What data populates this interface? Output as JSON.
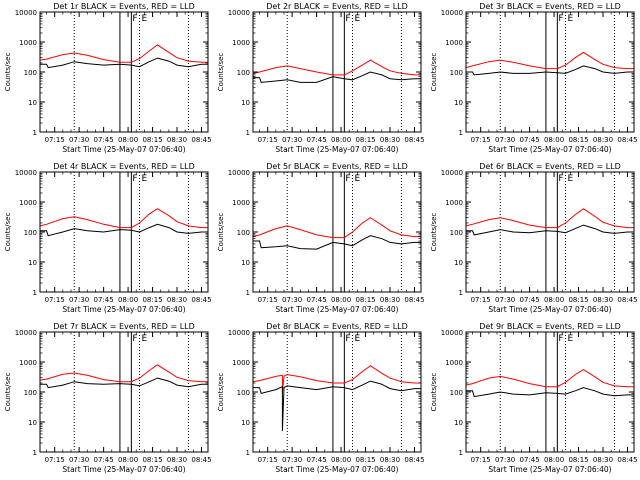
{
  "figure": {
    "time_label": "Start Time (25-May-07 07:06:40)",
    "y_label": "Counts/sec",
    "x_tick_labels": [
      "07:15",
      "07:30",
      "07:45",
      "08:00",
      "08:15",
      "08:30",
      "08:45"
    ],
    "y_tick_labels": [
      "1",
      "10",
      "100",
      "1000",
      "10000"
    ],
    "marker_labels": [
      "F",
      "E"
    ]
  },
  "chart_data": [
    {
      "type": "line",
      "title": "Det 1r BLACK = Events, RED = LLD",
      "xlabel": "Start Time (25-May-07 07:06:40)",
      "ylabel": "Counts/sec",
      "ylim": [
        1,
        10000
      ],
      "y_scale": "log",
      "x_range": [
        "07:06",
        "08:49"
      ],
      "vertical_markers": {
        "dotted": [
          "07:27",
          "08:07",
          "08:37"
        ],
        "solid": [
          "07:55",
          "08:02"
        ]
      },
      "series": [
        {
          "color": "#ff0000",
          "x": [
            "07:06",
            "07:10",
            "07:20",
            "07:27",
            "07:35",
            "07:45",
            "07:55",
            "08:02",
            "08:07",
            "08:13",
            "08:18",
            "08:25",
            "08:30",
            "08:37",
            "08:45",
            "08:49"
          ],
          "values": [
            250,
            270,
            380,
            430,
            360,
            260,
            210,
            210,
            280,
            500,
            800,
            450,
            300,
            230,
            210,
            210
          ]
        },
        {
          "color": "#000000",
          "x": [
            "07:06",
            "07:10",
            "07:11",
            "07:20",
            "07:27",
            "07:35",
            "07:45",
            "07:55",
            "08:02",
            "08:07",
            "08:13",
            "08:18",
            "08:25",
            "08:30",
            "08:37",
            "08:45",
            "08:49"
          ],
          "values": [
            180,
            180,
            140,
            170,
            220,
            190,
            170,
            180,
            170,
            150,
            220,
            290,
            230,
            170,
            150,
            180,
            180
          ]
        }
      ]
    },
    {
      "type": "line",
      "title": "Det 2r BLACK = Events, RED = LLD",
      "xlabel": "Start Time (25-May-07 07:06:40)",
      "ylabel": "Counts/sec",
      "ylim": [
        1,
        10000
      ],
      "y_scale": "log",
      "x_range": [
        "07:06",
        "08:49"
      ],
      "vertical_markers": {
        "dotted": [
          "07:27",
          "08:07",
          "08:37"
        ],
        "solid": [
          "07:55",
          "08:02"
        ]
      },
      "series": [
        {
          "color": "#ff0000",
          "x": [
            "07:06",
            "07:10",
            "07:20",
            "07:27",
            "07:35",
            "07:45",
            "07:55",
            "08:02",
            "08:07",
            "08:13",
            "08:18",
            "08:25",
            "08:30",
            "08:37",
            "08:45",
            "08:49"
          ],
          "values": [
            90,
            100,
            140,
            160,
            130,
            100,
            80,
            80,
            110,
            170,
            250,
            150,
            110,
            90,
            80,
            80
          ]
        },
        {
          "color": "#000000",
          "x": [
            "07:06",
            "07:10",
            "07:11",
            "07:20",
            "07:27",
            "07:35",
            "07:45",
            "07:55",
            "08:02",
            "08:07",
            "08:13",
            "08:18",
            "08:25",
            "08:30",
            "08:37",
            "08:45",
            "08:49"
          ],
          "values": [
            65,
            65,
            45,
            50,
            55,
            45,
            45,
            70,
            60,
            55,
            75,
            100,
            80,
            60,
            55,
            60,
            60
          ]
        }
      ]
    },
    {
      "type": "line",
      "title": "Det 3r BLACK = Events, RED = LLD",
      "xlabel": "Start Time (25-May-07 07:06:40)",
      "ylabel": "Counts/sec",
      "ylim": [
        1,
        10000
      ],
      "y_scale": "log",
      "x_range": [
        "07:06",
        "08:49"
      ],
      "vertical_markers": {
        "dotted": [
          "07:27",
          "08:07",
          "08:37"
        ],
        "solid": [
          "07:55",
          "08:02"
        ]
      },
      "series": [
        {
          "color": "#ff0000",
          "x": [
            "07:06",
            "07:10",
            "07:20",
            "07:27",
            "07:35",
            "07:45",
            "07:55",
            "08:02",
            "08:07",
            "08:13",
            "08:18",
            "08:25",
            "08:30",
            "08:37",
            "08:45",
            "08:49"
          ],
          "values": [
            140,
            160,
            220,
            250,
            210,
            160,
            130,
            130,
            170,
            300,
            450,
            260,
            180,
            140,
            130,
            130
          ]
        },
        {
          "color": "#000000",
          "x": [
            "07:06",
            "07:10",
            "07:11",
            "07:20",
            "07:27",
            "07:35",
            "07:45",
            "07:55",
            "08:02",
            "08:07",
            "08:13",
            "08:18",
            "08:25",
            "08:30",
            "08:37",
            "08:45",
            "08:49"
          ],
          "values": [
            100,
            100,
            80,
            90,
            100,
            90,
            90,
            100,
            95,
            90,
            120,
            160,
            130,
            100,
            90,
            100,
            100
          ]
        }
      ]
    },
    {
      "type": "line",
      "title": "Det 4r BLACK = Events, RED = LLD",
      "xlabel": "Start Time (25-May-07 07:06:40)",
      "ylabel": "Counts/sec",
      "ylim": [
        1,
        10000
      ],
      "y_scale": "log",
      "x_range": [
        "07:06",
        "08:49"
      ],
      "vertical_markers": {
        "dotted": [
          "07:27",
          "08:07",
          "08:37"
        ],
        "solid": [
          "07:55",
          "08:02"
        ]
      },
      "series": [
        {
          "color": "#ff0000",
          "x": [
            "07:06",
            "07:10",
            "07:20",
            "07:27",
            "07:35",
            "07:45",
            "07:55",
            "08:02",
            "08:07",
            "08:13",
            "08:18",
            "08:25",
            "08:30",
            "08:37",
            "08:45",
            "08:49"
          ],
          "values": [
            160,
            180,
            280,
            320,
            260,
            180,
            140,
            140,
            200,
            400,
            600,
            350,
            220,
            160,
            140,
            140
          ]
        },
        {
          "color": "#000000",
          "x": [
            "07:06",
            "07:10",
            "07:11",
            "07:20",
            "07:27",
            "07:35",
            "07:45",
            "07:55",
            "08:02",
            "08:07",
            "08:13",
            "08:18",
            "08:25",
            "08:30",
            "08:37",
            "08:45",
            "08:49"
          ],
          "values": [
            110,
            110,
            75,
            100,
            130,
            110,
            100,
            120,
            115,
            100,
            140,
            180,
            140,
            100,
            90,
            100,
            100
          ]
        }
      ]
    },
    {
      "type": "line",
      "title": "Det 5r BLACK = Events, RED = LLD",
      "xlabel": "Start Time (25-May-07 07:06:40)",
      "ylabel": "Counts/sec",
      "ylim": [
        1,
        10000
      ],
      "y_scale": "log",
      "x_range": [
        "07:06",
        "08:49"
      ],
      "vertical_markers": {
        "dotted": [
          "07:27",
          "08:07",
          "08:37"
        ],
        "solid": [
          "07:55",
          "08:02"
        ]
      },
      "series": [
        {
          "color": "#ff0000",
          "x": [
            "07:06",
            "07:10",
            "07:20",
            "07:27",
            "07:35",
            "07:45",
            "07:55",
            "08:02",
            "08:07",
            "08:13",
            "08:18",
            "08:25",
            "08:30",
            "08:37",
            "08:45",
            "08:49"
          ],
          "values": [
            70,
            80,
            130,
            160,
            120,
            80,
            65,
            65,
            100,
            200,
            300,
            170,
            110,
            80,
            70,
            70
          ]
        },
        {
          "color": "#000000",
          "x": [
            "07:06",
            "07:10",
            "07:11",
            "07:20",
            "07:27",
            "07:35",
            "07:45",
            "07:55",
            "08:02",
            "08:07",
            "08:13",
            "08:18",
            "08:25",
            "08:30",
            "08:37",
            "08:45",
            "08:49"
          ],
          "values": [
            50,
            50,
            30,
            32,
            35,
            28,
            27,
            45,
            40,
            35,
            55,
            75,
            60,
            45,
            40,
            45,
            45
          ]
        }
      ]
    },
    {
      "type": "line",
      "title": "Det 6r BLACK = Events, RED = LLD",
      "xlabel": "Start Time (25-May-07 07:06:40)",
      "ylabel": "Counts/sec",
      "ylim": [
        1,
        10000
      ],
      "y_scale": "log",
      "x_range": [
        "07:06",
        "08:49"
      ],
      "vertical_markers": {
        "dotted": [
          "07:27",
          "08:07",
          "08:37"
        ],
        "solid": [
          "07:55",
          "08:02"
        ]
      },
      "series": [
        {
          "color": "#ff0000",
          "x": [
            "07:06",
            "07:10",
            "07:20",
            "07:27",
            "07:35",
            "07:45",
            "07:55",
            "08:02",
            "08:07",
            "08:13",
            "08:18",
            "08:25",
            "08:30",
            "08:37",
            "08:45",
            "08:49"
          ],
          "values": [
            160,
            180,
            260,
            300,
            240,
            170,
            140,
            140,
            200,
            380,
            600,
            330,
            210,
            160,
            140,
            140
          ]
        },
        {
          "color": "#000000",
          "x": [
            "07:06",
            "07:10",
            "07:11",
            "07:20",
            "07:27",
            "07:35",
            "07:45",
            "07:55",
            "08:02",
            "08:07",
            "08:13",
            "08:18",
            "08:25",
            "08:30",
            "08:37",
            "08:45",
            "08:49"
          ],
          "values": [
            110,
            110,
            80,
            100,
            120,
            100,
            95,
            110,
            105,
            95,
            130,
            170,
            130,
            100,
            90,
            100,
            100
          ]
        }
      ]
    },
    {
      "type": "line",
      "title": "Det 7r BLACK = Events, RED = LLD",
      "xlabel": "Start Time (25-May-07 07:06:40)",
      "ylabel": "Counts/sec",
      "ylim": [
        1,
        10000
      ],
      "y_scale": "log",
      "x_range": [
        "07:06",
        "08:49"
      ],
      "vertical_markers": {
        "dotted": [
          "07:27",
          "08:07",
          "08:37"
        ],
        "solid": [
          "07:55",
          "08:02"
        ]
      },
      "series": [
        {
          "color": "#ff0000",
          "x": [
            "07:06",
            "07:10",
            "07:20",
            "07:27",
            "07:35",
            "07:45",
            "07:55",
            "08:02",
            "08:07",
            "08:13",
            "08:18",
            "08:25",
            "08:30",
            "08:37",
            "08:45",
            "08:49"
          ],
          "values": [
            250,
            270,
            390,
            430,
            360,
            260,
            220,
            220,
            290,
            520,
            800,
            460,
            310,
            240,
            220,
            220
          ]
        },
        {
          "color": "#000000",
          "x": [
            "07:06",
            "07:10",
            "07:11",
            "07:20",
            "07:27",
            "07:35",
            "07:45",
            "07:55",
            "08:02",
            "08:07",
            "08:13",
            "08:18",
            "08:25",
            "08:30",
            "08:37",
            "08:45",
            "08:49"
          ],
          "values": [
            180,
            180,
            140,
            170,
            220,
            190,
            180,
            190,
            180,
            160,
            220,
            290,
            230,
            170,
            150,
            180,
            180
          ]
        }
      ]
    },
    {
      "type": "line",
      "title": "Det 8r BLACK = Events, RED = LLD",
      "xlabel": "Start Time (25-May-07 07:06:40)",
      "ylabel": "Counts/sec",
      "ylim": [
        1,
        10000
      ],
      "y_scale": "log",
      "x_range": [
        "07:06",
        "08:49"
      ],
      "vertical_markers": {
        "dotted": [
          "07:27",
          "08:07",
          "08:37"
        ],
        "solid": [
          "07:55",
          "08:02"
        ]
      },
      "series": [
        {
          "color": "#ff0000",
          "x": [
            "07:06",
            "07:10",
            "07:20",
            "07:24",
            "07:24",
            "07:25",
            "07:27",
            "07:35",
            "07:45",
            "07:55",
            "08:02",
            "08:07",
            "08:13",
            "08:18",
            "08:25",
            "08:30",
            "08:37",
            "08:45",
            "08:49"
          ],
          "values": [
            220,
            240,
            330,
            360,
            100,
            340,
            380,
            320,
            240,
            200,
            200,
            260,
            480,
            750,
            420,
            290,
            220,
            200,
            200
          ]
        },
        {
          "color": "#000000",
          "x": [
            "07:06",
            "07:10",
            "07:11",
            "07:20",
            "07:24",
            "07:24",
            "07:25",
            "07:27",
            "07:35",
            "07:45",
            "07:55",
            "08:02",
            "08:07",
            "08:13",
            "08:18",
            "08:25",
            "08:30",
            "08:37",
            "08:45",
            "08:49"
          ],
          "values": [
            140,
            140,
            90,
            120,
            150,
            5,
            140,
            160,
            140,
            120,
            150,
            140,
            120,
            170,
            230,
            180,
            130,
            110,
            130,
            130
          ]
        }
      ]
    },
    {
      "type": "line",
      "title": "Det 9r BLACK = Events, RED = LLD",
      "xlabel": "Start Time (25-May-07 07:06:40)",
      "ylabel": "Counts/sec",
      "ylim": [
        1,
        10000
      ],
      "y_scale": "log",
      "x_range": [
        "07:06",
        "08:49"
      ],
      "vertical_markers": {
        "dotted": [
          "07:27",
          "08:07",
          "08:37"
        ],
        "solid": [
          "07:55",
          "08:02"
        ]
      },
      "series": [
        {
          "color": "#ff0000",
          "x": [
            "07:06",
            "07:10",
            "07:20",
            "07:27",
            "07:35",
            "07:45",
            "07:55",
            "08:02",
            "08:07",
            "08:13",
            "08:18",
            "08:25",
            "08:30",
            "08:37",
            "08:45",
            "08:49"
          ],
          "values": [
            170,
            190,
            290,
            330,
            270,
            190,
            150,
            150,
            210,
            380,
            560,
            320,
            210,
            160,
            150,
            150
          ]
        },
        {
          "color": "#000000",
          "x": [
            "07:06",
            "07:10",
            "07:11",
            "07:20",
            "07:27",
            "07:35",
            "07:45",
            "07:55",
            "08:02",
            "08:07",
            "08:13",
            "08:18",
            "08:25",
            "08:30",
            "08:37",
            "08:45",
            "08:49"
          ],
          "values": [
            110,
            110,
            70,
            85,
            100,
            85,
            80,
            95,
            90,
            85,
            110,
            140,
            110,
            85,
            75,
            80,
            80
          ]
        }
      ]
    }
  ]
}
